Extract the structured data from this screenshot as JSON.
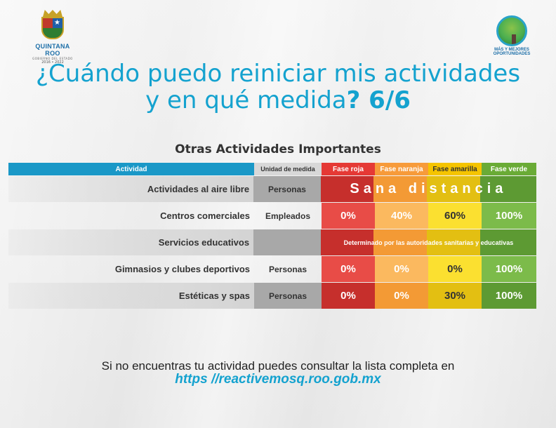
{
  "logos": {
    "left": {
      "name": "QUINTANA ROO",
      "gov": "GOBIERNO DEL ESTADO",
      "years": "2016 • 2022"
    },
    "right": {
      "line1": "MÁS Y MEJORES",
      "line2": "OPORTUNIDADES"
    }
  },
  "title": {
    "line1": "¿Cuándo puedo reiniciar mis actividades",
    "line2_text": "y en qué medida",
    "line2_bold": "? 6/6"
  },
  "subtitle": "Otras Actividades Importantes",
  "table": {
    "headers": {
      "actividad": "Actividad",
      "unidad": "Unidad de medida",
      "roja": "Fase roja",
      "naranja": "Fase naranja",
      "amarilla": "Fase amarilla",
      "verde": "Fase verde"
    },
    "rows": [
      {
        "actividad": "Actividades al aire libre",
        "unidad": "Personas",
        "span": "Sana distancia"
      },
      {
        "actividad": "Centros comerciales",
        "unidad": "Empleados",
        "roja": "0%",
        "naranja": "40%",
        "amarilla": "60%",
        "verde": "100%"
      },
      {
        "actividad": "Servicios educativos",
        "unidad": "",
        "span": "Determinado por las autoridades sanitarias y educativas"
      },
      {
        "actividad": "Gimnasios y clubes deportivos",
        "unidad": "Personas",
        "roja": "0%",
        "naranja": "0%",
        "amarilla": "0%",
        "verde": "100%"
      },
      {
        "actividad": "Estéticas y spas",
        "unidad": "Personas",
        "roja": "0%",
        "naranja": "0%",
        "amarilla": "30%",
        "verde": "100%"
      }
    ]
  },
  "footer": {
    "text": "Si no encuentras tu actividad puedes consultar la lista completa en",
    "url": "https //reactivemosq.roo.gob.mx"
  },
  "colors": {
    "accent": "#14a2cf",
    "roja": "#e53935",
    "naranja": "#f79b3a",
    "amarilla": "#f5c400",
    "verde": "#6aab36"
  }
}
